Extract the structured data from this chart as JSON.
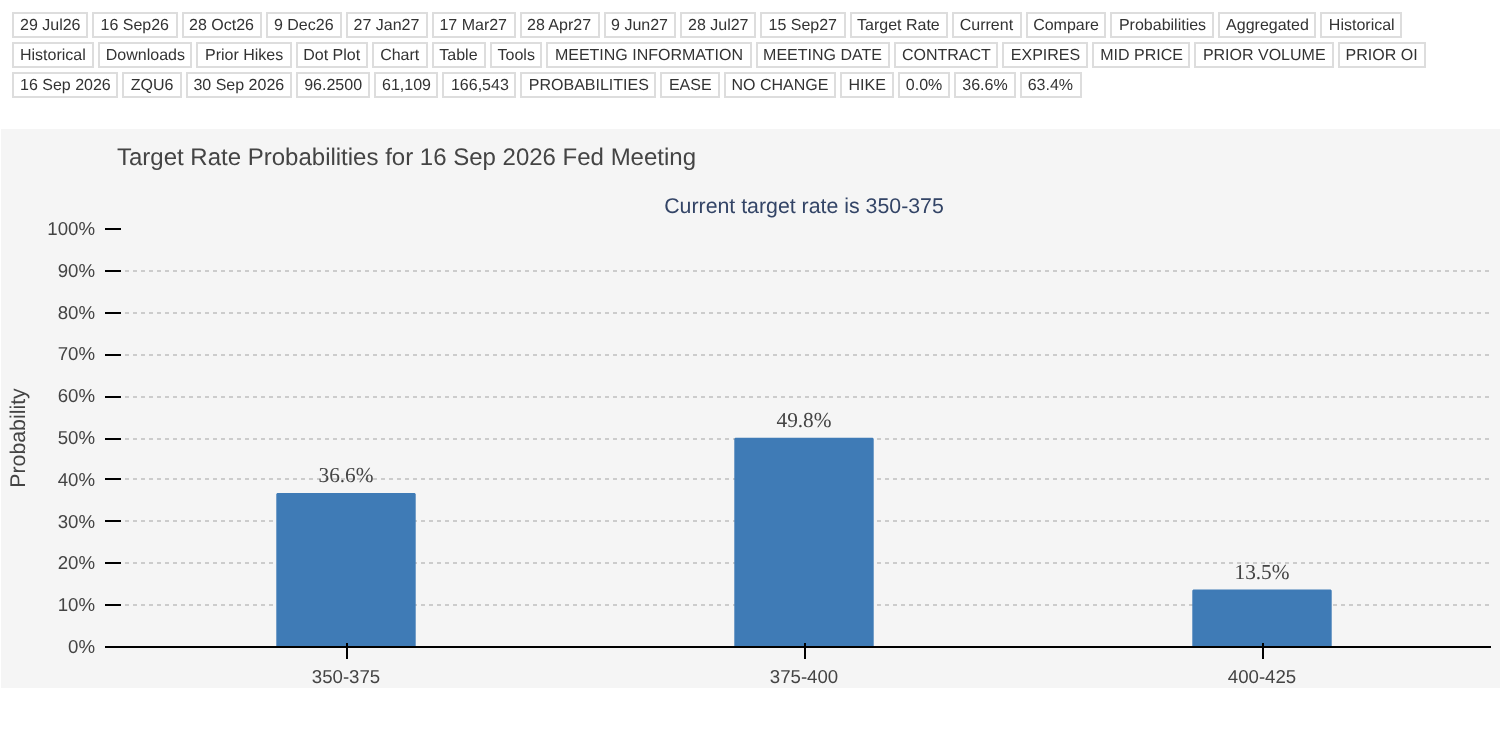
{
  "chart_data": {
    "type": "bar",
    "title": "Target Rate Probabilities for 16 Sep 2026 Fed Meeting",
    "subtitle": "Current target rate is 350-375",
    "ylabel": "Probability",
    "categories": [
      "350-375",
      "375-400",
      "400-425"
    ],
    "values": [
      36.6,
      49.8,
      13.5
    ],
    "color": "#3f7bb6",
    "value_labels": [
      "36.6%",
      "49.8%",
      "13.5%"
    ],
    "ylim": [
      0,
      100
    ],
    "yticks": [
      {
        "value": 0,
        "label": "0%"
      },
      {
        "value": 10,
        "label": "10%"
      },
      {
        "value": 20,
        "label": "20%"
      },
      {
        "value": 30,
        "label": "30%"
      },
      {
        "value": 40,
        "label": "40%"
      },
      {
        "value": 50,
        "label": "50%"
      },
      {
        "value": 60,
        "label": "60%"
      },
      {
        "value": 70,
        "label": "70%"
      },
      {
        "value": 80,
        "label": "80%"
      },
      {
        "value": 90,
        "label": "90%"
      },
      {
        "value": 100,
        "label": "100%"
      }
    ],
    "grid": "y",
    "annotations": [
      "29 Jul26",
      "16 Sep26",
      "28 Oct26",
      "9 Dec26",
      "27 Jan27",
      "17 Mar27",
      "28 Apr27",
      "9 Jun27",
      "28 Jul27",
      "15 Sep27",
      "Target Rate",
      "Current",
      "Compare",
      "Probabilities",
      "Aggregated",
      "Historical",
      "Historical",
      "Downloads",
      "Prior Hikes",
      "Dot Plot",
      "Chart",
      "Table",
      "Tools",
      "MEETING INFORMATION",
      "MEETING DATE",
      "CONTRACT",
      "EXPIRES",
      "MID PRICE",
      "PRIOR VOLUME",
      "PRIOR OI",
      "16 Sep 2026",
      "ZQU6",
      "30 Sep 2026",
      "96.2500",
      "61,109",
      "166,543",
      "PROBABILITIES",
      "EASE",
      "NO CHANGE",
      "HIKE",
      "0.0%",
      "36.6%",
      "63.4%"
    ]
  }
}
